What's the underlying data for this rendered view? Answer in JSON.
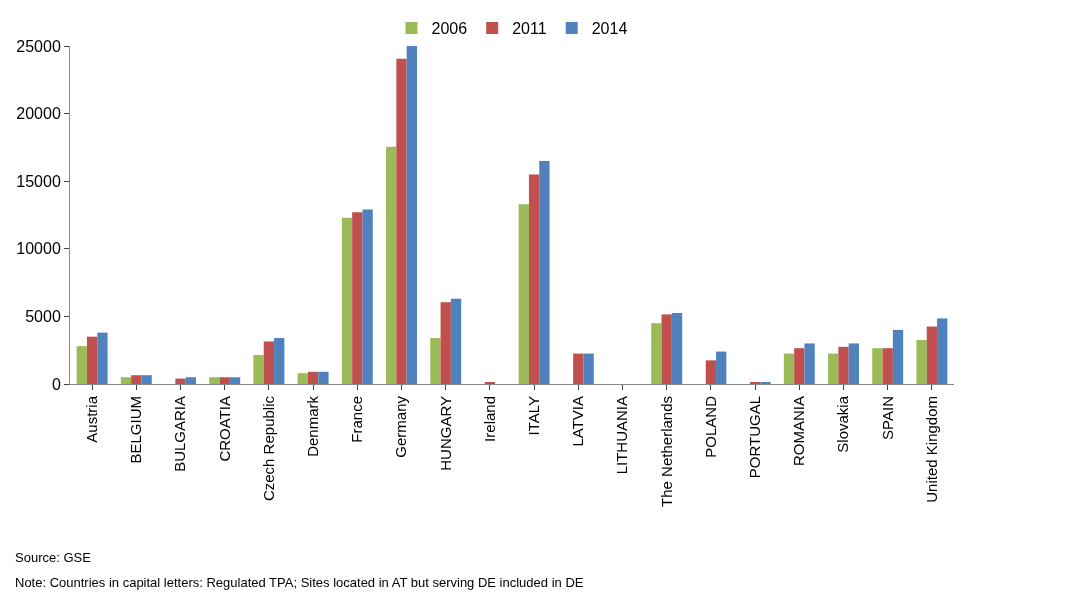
{
  "chart_data": {
    "type": "bar",
    "categories": [
      "Austria",
      "BELGIUM",
      "BULGARIA",
      "CROATIA",
      "Czech Republic",
      "Denmark",
      "France",
      "Germany",
      "HUNGARY",
      "Ireland",
      "ITALY",
      "LATVIA",
      "LITHUANIA",
      "The Netherlands",
      "POLAND",
      "PORTUGAL",
      "ROMANIA",
      "Slovakia",
      "SPAIN",
      "United Kingdom"
    ],
    "series": [
      {
        "name": "2006",
        "color": "#9bbb59",
        "values": [
          2800,
          500,
          null,
          500,
          2150,
          800,
          12300,
          17550,
          3400,
          null,
          13300,
          null,
          null,
          4500,
          null,
          null,
          2250,
          2250,
          2650,
          3250
        ]
      },
      {
        "name": "2011",
        "color": "#c0504d",
        "values": [
          3500,
          650,
          400,
          500,
          3150,
          900,
          12700,
          24050,
          6050,
          150,
          15500,
          2250,
          null,
          5150,
          1750,
          150,
          2650,
          2750,
          2650,
          4250
        ]
      },
      {
        "name": "2014",
        "color": "#4f81bd",
        "values": [
          3800,
          650,
          500,
          500,
          3400,
          900,
          12900,
          25000,
          6300,
          null,
          16500,
          2250,
          null,
          5250,
          2400,
          150,
          3000,
          3000,
          4000,
          4850
        ]
      }
    ],
    "ylim": [
      0,
      25000
    ],
    "yticks": [
      0,
      5000,
      10000,
      15000,
      20000,
      25000
    ],
    "legend": "top",
    "annotations": [
      "Source: GSE",
      "Note: Countries in capital letters: Regulated TPA; Sites located in AT but serving DE included in DE"
    ]
  }
}
